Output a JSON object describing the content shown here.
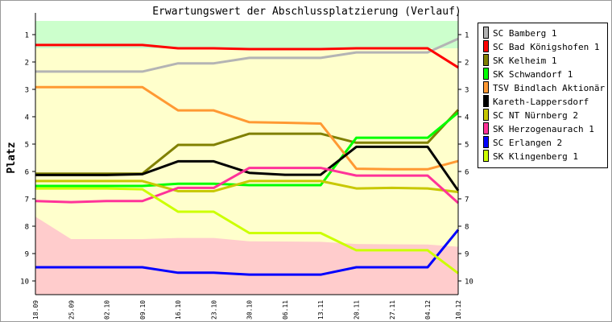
{
  "chart_data": {
    "type": "line",
    "title": "Erwartungswert der Abschlussplatzierung (Verlauf)",
    "xlabel": "",
    "ylabel": "Platz",
    "ylim": [
      0.5,
      10.5
    ],
    "y_ticks": [
      "1",
      "2",
      "3",
      "4",
      "5",
      "6",
      "7",
      "8",
      "9",
      "10"
    ],
    "categories": [
      "18.09",
      "25.09",
      "02.10",
      "09.10",
      "16.10",
      "23.10",
      "30.10",
      "06.11",
      "13.11",
      "20.11",
      "27.11",
      "04.12",
      "10.12"
    ],
    "x_days": [
      0,
      7,
      14,
      21,
      28,
      35,
      42,
      49,
      56,
      63,
      70,
      77,
      83
    ],
    "legend_position": "right",
    "zones": {
      "top_boundary": [
        1.5,
        1.5,
        1.5,
        1.5,
        1.5,
        1.5,
        1.5,
        1.5,
        1.5,
        1.5,
        1.5,
        1.5,
        1.5
      ],
      "bottom_boundary": [
        7.65,
        8.47,
        8.47,
        8.47,
        8.43,
        8.43,
        8.55,
        8.56,
        8.57,
        8.65,
        8.66,
        8.67,
        8.75
      ],
      "colors": {
        "top": "#ccffcc",
        "middle": "#ffffcc",
        "bottom": "#ffcccc"
      }
    },
    "series": [
      {
        "name": "SC Bamberg 1",
        "color": "#b4b4b4",
        "values": [
          2.35,
          2.35,
          2.35,
          2.35,
          2.05,
          2.05,
          1.85,
          1.85,
          1.85,
          1.65,
          1.65,
          1.65,
          1.15
        ]
      },
      {
        "name": "SC Bad Königshofen 1",
        "color": "#ff0000",
        "values": [
          1.38,
          1.38,
          1.38,
          1.38,
          1.5,
          1.5,
          1.53,
          1.53,
          1.53,
          1.5,
          1.5,
          1.5,
          2.2
        ]
      },
      {
        "name": "SK Kelheim 1",
        "color": "#808000",
        "values": [
          6.08,
          6.08,
          6.08,
          6.08,
          5.03,
          5.03,
          4.62,
          4.62,
          4.62,
          4.95,
          4.95,
          4.95,
          3.75
        ]
      },
      {
        "name": "SK Schwandorf 1",
        "color": "#00ff00",
        "values": [
          6.53,
          6.53,
          6.53,
          6.53,
          6.45,
          6.45,
          6.5,
          6.5,
          6.5,
          4.77,
          4.77,
          4.77,
          3.85
        ]
      },
      {
        "name": "TSV Bindlach Aktionär 1",
        "color": "#ff9933",
        "values": [
          2.92,
          2.92,
          2.92,
          2.92,
          3.77,
          3.77,
          4.2,
          4.22,
          4.25,
          5.9,
          5.92,
          5.92,
          5.62
        ]
      },
      {
        "name": "Kareth-Lappersdorf",
        "color": "#000000",
        "values": [
          6.13,
          6.13,
          6.13,
          6.1,
          5.63,
          5.63,
          6.05,
          6.12,
          6.12,
          5.1,
          5.1,
          5.1,
          6.7
        ]
      },
      {
        "name": "SC NT Nürnberg 2",
        "color": "#c8c800",
        "values": [
          6.35,
          6.35,
          6.35,
          6.35,
          6.72,
          6.72,
          6.35,
          6.35,
          6.35,
          6.62,
          6.6,
          6.62,
          6.75
        ]
      },
      {
        "name": "SK Herzogenaurach 1",
        "color": "#ff3399",
        "values": [
          7.08,
          7.12,
          7.08,
          7.08,
          6.6,
          6.6,
          5.87,
          5.87,
          5.87,
          6.15,
          6.15,
          6.15,
          7.15
        ]
      },
      {
        "name": "SC Erlangen 2",
        "color": "#0000ff",
        "values": [
          9.5,
          9.5,
          9.5,
          9.5,
          9.7,
          9.7,
          9.77,
          9.77,
          9.77,
          9.5,
          9.5,
          9.5,
          8.13
        ]
      },
      {
        "name": "SK Klingenberg 1",
        "color": "#ccff00",
        "values": [
          6.62,
          6.62,
          6.62,
          6.65,
          7.47,
          7.47,
          8.25,
          8.25,
          8.25,
          8.88,
          8.88,
          8.88,
          9.72
        ]
      }
    ]
  }
}
